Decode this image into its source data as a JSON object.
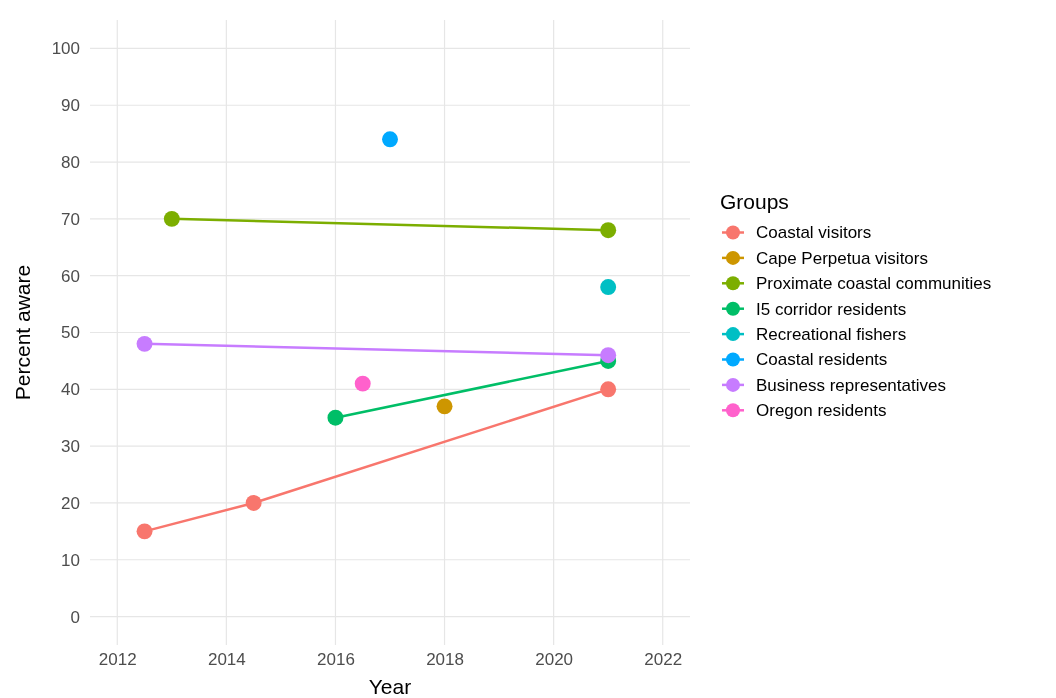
{
  "chart_data": {
    "type": "line",
    "xlabel": "Year",
    "ylabel": "Percent aware",
    "legend_title": "Groups",
    "legend": "right",
    "grid": true,
    "marker": "circle",
    "line_style": "solid",
    "xlim": [
      2011.5,
      2022.5
    ],
    "xticks": [
      2012,
      2014,
      2016,
      2018,
      2020,
      2022
    ],
    "ylim": [
      -5,
      105
    ],
    "yticks": [
      0,
      10,
      20,
      30,
      40,
      50,
      60,
      70,
      80,
      90,
      100
    ],
    "series": [
      {
        "name": "Coastal visitors",
        "color": "#f8766d",
        "x": [
          2012.5,
          2014.5,
          2021
        ],
        "values": [
          15,
          20,
          40
        ]
      },
      {
        "name": "Cape Perpetua visitors",
        "color": "#cd9600",
        "x": [
          2018
        ],
        "values": [
          37
        ]
      },
      {
        "name": "Proximate coastal communities",
        "color": "#7cae00",
        "x": [
          2013,
          2021
        ],
        "values": [
          70,
          68
        ]
      },
      {
        "name": "I5 corridor residents",
        "color": "#00be67",
        "x": [
          2016,
          2021
        ],
        "values": [
          35,
          45
        ]
      },
      {
        "name": "Recreational fishers",
        "color": "#00bfc4",
        "x": [
          2021
        ],
        "values": [
          58
        ]
      },
      {
        "name": "Coastal residents",
        "color": "#00a9ff",
        "x": [
          2017
        ],
        "values": [
          84
        ]
      },
      {
        "name": "Business representatives",
        "color": "#c77cff",
        "x": [
          2012.5,
          2021
        ],
        "values": [
          48,
          46
        ]
      },
      {
        "name": "Oregon residents",
        "color": "#ff61cc",
        "x": [
          2016.5
        ],
        "values": [
          41
        ]
      }
    ]
  }
}
